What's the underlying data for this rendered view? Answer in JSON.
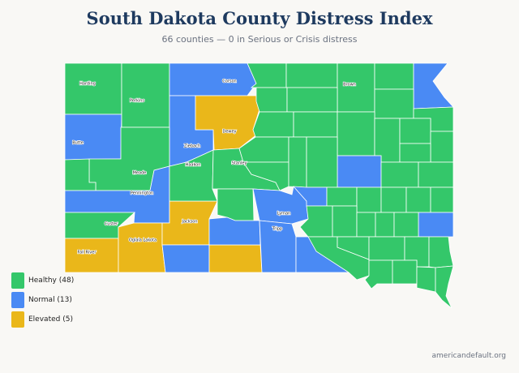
{
  "title": "South Dakota County Distress Index",
  "subtitle": "66 counties — 0 in Serious or Crisis distress",
  "colors": {
    "healthy": "#34c76a",
    "normal": "#4a8af4",
    "elevated": "#eab71a"
  },
  "legend": [
    {
      "label": "Healthy (48)",
      "status": "healthy"
    },
    {
      "label": "Normal (13)",
      "status": "normal"
    },
    {
      "label": "Elevated (5)",
      "status": "elevated"
    }
  ],
  "counties": [
    {
      "name": "Harding",
      "status": "healthy"
    },
    {
      "name": "Butte",
      "status": "normal"
    },
    {
      "name": "Perkins",
      "status": "healthy"
    },
    {
      "name": "Corson",
      "status": "normal"
    },
    {
      "name": "Ziebach",
      "status": "normal"
    },
    {
      "name": "Dewey",
      "status": "elevated"
    },
    {
      "name": "Meade",
      "status": "healthy"
    },
    {
      "status": "healthy"
    },
    {
      "name": "Pennington",
      "status": "normal"
    },
    {
      "name": "Custer",
      "status": "healthy"
    },
    {
      "name": "Fall River",
      "status": "elevated"
    },
    {
      "name": "Oglala Lakota",
      "status": "elevated"
    },
    {
      "name": "Jackson",
      "status": "elevated"
    },
    {
      "status": "normal"
    },
    {
      "status": "elevated"
    },
    {
      "name": "Haakon",
      "status": "healthy"
    },
    {
      "name": "Stanley",
      "status": "healthy"
    },
    {
      "status": "healthy"
    },
    {
      "status": "normal"
    },
    {
      "name": "Lyman",
      "status": "normal"
    },
    {
      "name": "Tripp",
      "status": "normal"
    },
    {
      "status": "normal"
    },
    {
      "status": "healthy"
    },
    {
      "status": "healthy"
    },
    {
      "name": "Brown",
      "status": "healthy"
    },
    {
      "status": "healthy"
    },
    {
      "status": "normal"
    },
    {
      "status": "healthy"
    },
    {
      "status": "healthy"
    },
    {
      "status": "healthy"
    },
    {
      "status": "healthy"
    },
    {
      "status": "healthy"
    },
    {
      "status": "healthy"
    },
    {
      "status": "healthy"
    },
    {
      "status": "healthy"
    },
    {
      "status": "healthy"
    },
    {
      "status": "healthy"
    },
    {
      "status": "healthy"
    },
    {
      "status": "healthy"
    },
    {
      "status": "healthy"
    },
    {
      "status": "normal"
    },
    {
      "status": "healthy"
    },
    {
      "status": "healthy"
    },
    {
      "status": "normal"
    },
    {
      "status": "healthy"
    },
    {
      "status": "healthy"
    },
    {
      "status": "healthy"
    },
    {
      "status": "healthy"
    },
    {
      "status": "healthy"
    },
    {
      "status": "healthy"
    },
    {
      "status": "healthy"
    },
    {
      "status": "healthy"
    },
    {
      "status": "healthy"
    },
    {
      "status": "normal"
    },
    {
      "status": "healthy"
    },
    {
      "status": "healthy"
    },
    {
      "status": "healthy"
    },
    {
      "status": "healthy"
    },
    {
      "status": "healthy"
    },
    {
      "status": "healthy"
    },
    {
      "status": "healthy"
    },
    {
      "status": "healthy"
    },
    {
      "status": "healthy"
    },
    {
      "status": "healthy"
    },
    {
      "status": "healthy"
    },
    {
      "status": "healthy"
    }
  ],
  "footer": "americandefault.org"
}
